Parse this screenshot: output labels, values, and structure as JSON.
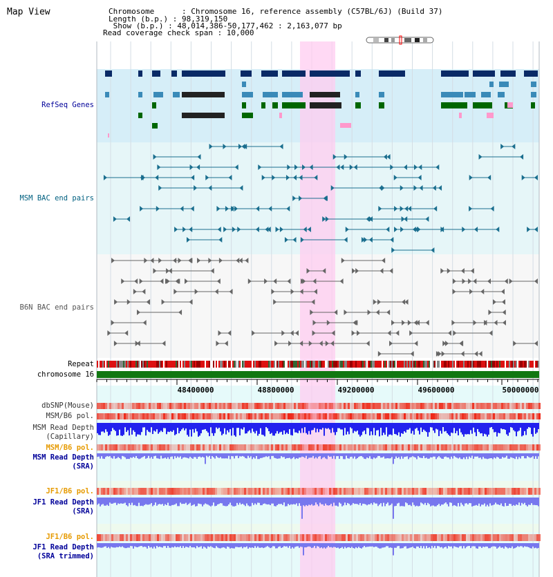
{
  "title": "Map View",
  "info": {
    "chromosome_line": "Chromosome      : Chromosome 16, reference assembly (C57BL/6J) (Build 37)",
    "length_line": "Length (b.p.) : 98,319,150",
    "show_line": " Show (b.p.) : 48,014,386-50,177,462 : 2,163,077 bp",
    "coverage_line": "Read coverage check span : 10,000"
  },
  "tracks": {
    "refseq": "RefSeq Genes",
    "msm_bac": "MSM BAC end pairs",
    "b6n_bac": "B6N BAC end pairs",
    "repeat": "Repeat",
    "chromosome": "chromosome 16",
    "dbsnp": "dbSNP(Mouse)",
    "msm_b6_pol": "MSM/B6 pol.",
    "msm_depth_cap_1": "MSM Read Depth",
    "msm_depth_cap_2": "(Capillary)",
    "msm_b6_pol_2": "MSM/B6 pol.",
    "msm_depth_sra_1": "MSM Read Depth",
    "msm_depth_sra_2": "(SRA)",
    "jf1_b6_pol": "JF1/B6 pol.",
    "jf1_depth_sra_1": "JF1 Read Depth",
    "jf1_depth_sra_2": "(SRA)",
    "jf1_b6_pol_2": "JF1/B6 pol.",
    "jf1_depth_trim_1": "JF1 Read Depth",
    "jf1_depth_trim_2": "(SRA trimmed)"
  },
  "axis": {
    "ticks": [
      "48400000",
      "48800000",
      "49200000",
      "49600000",
      "50000000"
    ]
  },
  "colors": {
    "refseq_dark": "#0a2a66",
    "refseq_mid": "#3a8ab8",
    "refseq_green": "#006600",
    "refseq_pink": "#ff99cc",
    "msm_bac": "#1a6e8e",
    "b6n_bac": "#666666",
    "highlight": "#ffccf0",
    "depth_blue": "#2222ee",
    "depth_light": "#7777ee",
    "label_navy": "#000099",
    "label_orange": "#e69a00",
    "label_teal": "#006080"
  }
}
